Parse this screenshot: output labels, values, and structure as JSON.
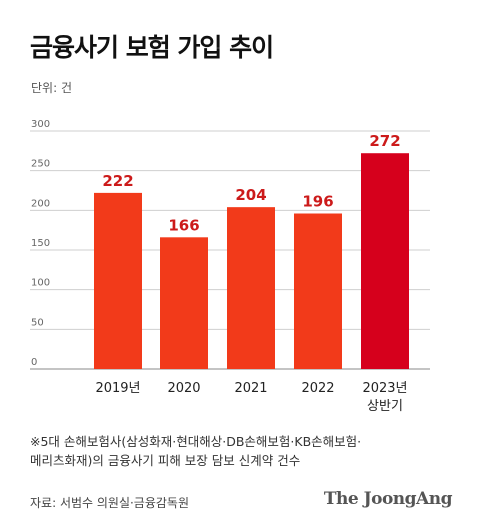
{
  "header": {
    "title": "금융사기 보험 가입 추이",
    "unit": "단위: 건"
  },
  "chart_data": {
    "type": "bar",
    "categories": [
      "2019년",
      "2020",
      "2021",
      "2022",
      "2023년\n상반기"
    ],
    "values": [
      222,
      166,
      204,
      196,
      272
    ],
    "ylim": [
      0,
      300
    ],
    "yticks": [
      0,
      50,
      100,
      150,
      200,
      250,
      300
    ],
    "grid": true,
    "colors": {
      "bar": "#f23a1a",
      "highlight_bar": "#d6001c",
      "label": "#cc1a1a",
      "grid": "#cfcfcf"
    },
    "highlight_index": 4
  },
  "footer": {
    "note_line1": "※5대 손해보험사(삼성화재·현대해상·DB손해보험·KB손해보험·",
    "note_line2": "메리츠화재)의 금융사기 피해 보장 담보 신계약 건수",
    "source": "자료: 서범수 의원실·금융감독원",
    "brand": "The JoongAng"
  }
}
